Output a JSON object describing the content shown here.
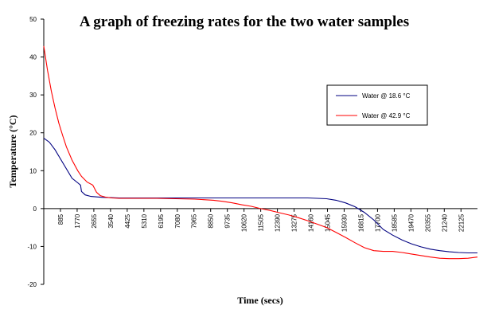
{
  "chart_data": {
    "type": "line",
    "title": "A graph of freezing rates for the two water samples",
    "xlabel": "Time (secs)",
    "ylabel": "Temperature (°C)",
    "ylim": [
      -20,
      50
    ],
    "xlim": [
      0,
      23000
    ],
    "y_ticks": [
      "50",
      "40",
      "30",
      "20",
      "10",
      "0",
      "-10",
      "-20"
    ],
    "x_ticks": [
      "885",
      "1770",
      "2655",
      "3540",
      "4425",
      "5310",
      "6195",
      "7080",
      "7965",
      "8850",
      "9735",
      "10620",
      "11505",
      "12390",
      "13275",
      "14160",
      "15045",
      "15930",
      "16815",
      "17700",
      "18585",
      "19470",
      "20355",
      "21240",
      "22125"
    ],
    "grid": false,
    "legend_position": "right",
    "series": [
      {
        "name": "Water @ 18.6 °C",
        "color": "#000080",
        "x": [
          0,
          300,
          600,
          900,
          1200,
          1500,
          1800,
          1950,
          2000,
          2200,
          2500,
          3000,
          3500,
          4000,
          5000,
          6000,
          7000,
          8000,
          9000,
          10000,
          11000,
          12000,
          13000,
          14000,
          15000,
          15500,
          16000,
          16500,
          17000,
          17500,
          18000,
          18500,
          19000,
          19500,
          20000,
          20500,
          21000,
          21500,
          22000,
          22500,
          23000
        ],
        "values": [
          18.6,
          17.5,
          15.5,
          13,
          10.5,
          8,
          6.8,
          6.2,
          4.5,
          3.6,
          3.2,
          3.0,
          2.9,
          2.8,
          2.8,
          2.8,
          2.8,
          2.8,
          2.8,
          2.8,
          2.8,
          2.8,
          2.8,
          2.8,
          2.6,
          2.2,
          1.5,
          0.5,
          -1.0,
          -3.0,
          -5.5,
          -7.0,
          -8.3,
          -9.3,
          -10.1,
          -10.7,
          -11.1,
          -11.4,
          -11.6,
          -11.7,
          -11.7
        ]
      },
      {
        "name": "Water @ 42.9 °C",
        "color": "#ff0000",
        "x": [
          0,
          200,
          400,
          600,
          800,
          1000,
          1200,
          1500,
          1800,
          2000,
          2300,
          2600,
          2800,
          3000,
          3300,
          3600,
          4000,
          5000,
          6000,
          7000,
          8000,
          9000,
          9500,
          10000,
          10500,
          11000,
          11500,
          12000,
          12500,
          13000,
          13500,
          14000,
          14500,
          15000,
          15500,
          16000,
          16500,
          17000,
          17500,
          18000,
          18500,
          19000,
          19500,
          20000,
          20500,
          21000,
          21500,
          22000,
          22500,
          23000
        ],
        "values": [
          42.9,
          36.5,
          31,
          26.5,
          22.5,
          19.3,
          16.3,
          12.8,
          10.0,
          8.5,
          7.0,
          6.2,
          4.3,
          3.4,
          3.0,
          2.8,
          2.7,
          2.7,
          2.7,
          2.6,
          2.5,
          2.2,
          1.9,
          1.5,
          1.0,
          0.6,
          0.0,
          -0.5,
          -1.1,
          -1.7,
          -2.4,
          -3.2,
          -4.1,
          -5.0,
          -6.3,
          -7.6,
          -9.0,
          -10.3,
          -11.1,
          -11.3,
          -11.3,
          -11.6,
          -12.0,
          -12.4,
          -12.8,
          -13.1,
          -13.2,
          -13.2,
          -13.1,
          -12.8
        ]
      }
    ]
  }
}
